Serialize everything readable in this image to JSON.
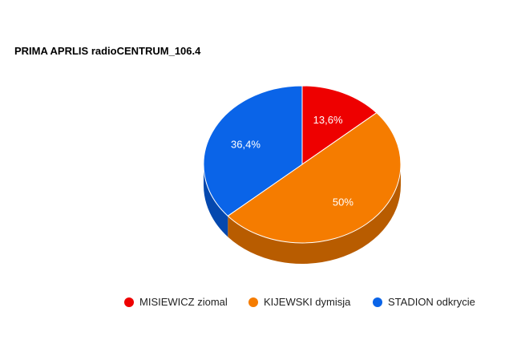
{
  "chart_data": {
    "type": "pie",
    "style": "3d",
    "title": "PRIMA APRLIS radioCENTRUM_106.4",
    "legend_position": "bottom",
    "slices": [
      {
        "label": "MISIEWICZ ziomal",
        "value": 13.6,
        "display": "13,6%",
        "color": "#ee0000",
        "side_color": "#b80000"
      },
      {
        "label": "KIJEWSKI dymisja",
        "value": 50,
        "display": "50%",
        "color": "#f57c00",
        "side_color": "#b85c00"
      },
      {
        "label": "STADION odkrycie",
        "value": 36.4,
        "display": "36,4%",
        "color": "#0a64e8",
        "side_color": "#0548ae"
      }
    ]
  }
}
